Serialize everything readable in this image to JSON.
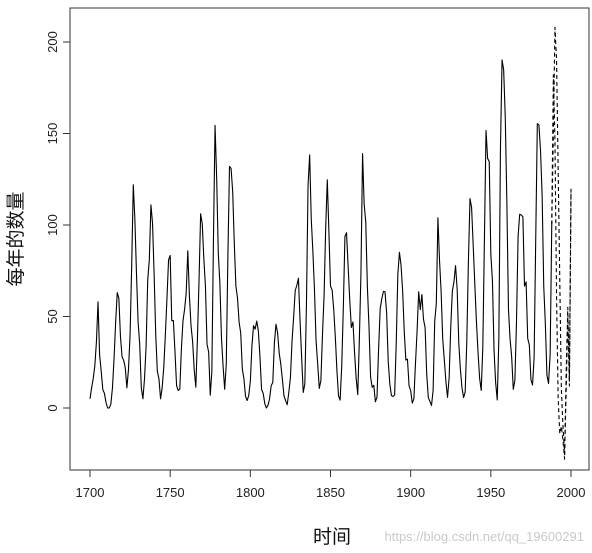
{
  "chart_data": {
    "type": "line",
    "title": "",
    "xlabel": "时间",
    "ylabel": "每年的数量",
    "xlim": [
      1700,
      2000
    ],
    "ylim": [
      -35,
      218
    ],
    "x_ticks": [
      1700,
      1750,
      1800,
      1850,
      1900,
      1950,
      2000
    ],
    "y_ticks": [
      0,
      50,
      100,
      150,
      200
    ],
    "grid": false,
    "legend": "none",
    "watermark": "https://blog.csdn.net/qq_19600291",
    "colors": {
      "line": "#000000",
      "axis": "#333333"
    },
    "series": [
      {
        "style": "solid",
        "x": [
          1700,
          1701,
          1702,
          1703,
          1704,
          1705,
          1706,
          1707,
          1708,
          1709,
          1710,
          1711,
          1712,
          1713,
          1714,
          1715,
          1716,
          1717,
          1718,
          1719,
          1720,
          1721,
          1722,
          1723,
          1724,
          1725,
          1726,
          1727,
          1728,
          1729,
          1730,
          1731,
          1732,
          1733,
          1734,
          1735,
          1736,
          1737,
          1738,
          1739,
          1740,
          1741,
          1742,
          1743,
          1744,
          1745,
          1746,
          1747,
          1748,
          1749,
          1750,
          1751,
          1752,
          1753,
          1754,
          1755,
          1756,
          1757,
          1758,
          1759,
          1760,
          1761,
          1762,
          1763,
          1764,
          1765,
          1766,
          1767,
          1768,
          1769,
          1770,
          1771,
          1772,
          1773,
          1774,
          1775,
          1776,
          1777,
          1778,
          1779,
          1780,
          1781,
          1782,
          1783,
          1784,
          1785,
          1786,
          1787,
          1788,
          1789,
          1790,
          1791,
          1792,
          1793,
          1794,
          1795,
          1796,
          1797,
          1798,
          1799,
          1800,
          1801,
          1802,
          1803,
          1804,
          1805,
          1806,
          1807,
          1808,
          1809,
          1810,
          1811,
          1812,
          1813,
          1814,
          1815,
          1816,
          1817,
          1818,
          1819,
          1820,
          1821,
          1822,
          1823,
          1824,
          1825,
          1826,
          1827,
          1828,
          1829,
          1830,
          1831,
          1832,
          1833,
          1834,
          1835,
          1836,
          1837,
          1838,
          1839,
          1840,
          1841,
          1842,
          1843,
          1844,
          1845,
          1846,
          1847,
          1848,
          1849,
          1850,
          1851,
          1852,
          1853,
          1854,
          1855,
          1856,
          1857,
          1858,
          1859,
          1860,
          1861,
          1862,
          1863,
          1864,
          1865,
          1866,
          1867,
          1868,
          1869,
          1870,
          1871,
          1872,
          1873,
          1874,
          1875,
          1876,
          1877,
          1878,
          1879,
          1880,
          1881,
          1882,
          1883,
          1884,
          1885,
          1886,
          1887,
          1888,
          1889,
          1890,
          1891,
          1892,
          1893,
          1894,
          1895,
          1896,
          1897,
          1898,
          1899,
          1900,
          1901,
          1902,
          1903,
          1904,
          1905,
          1906,
          1907,
          1908,
          1909,
          1910,
          1911,
          1912,
          1913,
          1914,
          1915,
          1916,
          1917,
          1918,
          1919,
          1920,
          1921,
          1922,
          1923,
          1924,
          1925,
          1926,
          1927,
          1928,
          1929,
          1930,
          1931,
          1932,
          1933,
          1934,
          1935,
          1936,
          1937,
          1938,
          1939,
          1940,
          1941,
          1942,
          1943,
          1944,
          1945,
          1946,
          1947,
          1948,
          1949,
          1950,
          1951,
          1952,
          1953,
          1954,
          1955,
          1956,
          1957,
          1958,
          1959,
          1960,
          1961,
          1962,
          1963,
          1964,
          1965,
          1966,
          1967,
          1968,
          1969,
          1970,
          1971,
          1972,
          1973,
          1974,
          1975,
          1976,
          1977,
          1978,
          1979,
          1980,
          1981,
          1982,
          1983,
          1984,
          1985,
          1986,
          1987,
          1988
        ],
        "values": [
          5,
          11,
          16,
          23,
          36,
          58,
          29,
          20,
          10,
          8,
          3,
          0,
          0,
          2,
          11,
          27,
          47,
          63,
          60,
          39,
          28,
          26,
          22,
          11,
          21,
          40,
          78,
          122,
          103,
          73,
          47,
          35,
          11,
          5,
          16,
          34,
          70,
          81,
          111,
          101,
          73,
          40,
          20,
          16,
          5,
          11,
          22,
          40,
          60,
          80.9,
          83.4,
          47.7,
          47.8,
          30.7,
          12.2,
          9.6,
          10.2,
          32.4,
          47.6,
          54,
          62.9,
          85.9,
          61.2,
          45.1,
          36.4,
          20.9,
          11.4,
          37.8,
          69.8,
          106.1,
          100.8,
          81.6,
          66.5,
          34.8,
          30.6,
          7,
          19.8,
          92.5,
          154.4,
          125.9,
          84.8,
          68.1,
          38.5,
          22.8,
          10.2,
          24.1,
          82.9,
          132,
          130.9,
          118.1,
          89.9,
          66.6,
          60,
          46.9,
          41,
          21.3,
          16,
          6.4,
          4.1,
          6.8,
          14.5,
          34,
          45,
          43.1,
          47.5,
          42.2,
          28.1,
          10.1,
          8.1,
          2.5,
          0,
          1.4,
          5,
          12.2,
          13.9,
          35.4,
          45.8,
          41.1,
          30.1,
          23.9,
          15.6,
          6.6,
          4,
          1.8,
          8.5,
          16.6,
          36.3,
          49.6,
          64.2,
          67,
          70.9,
          47.8,
          27.5,
          8.5,
          13.2,
          56.9,
          121.5,
          138.3,
          103.2,
          85.7,
          64.6,
          36.7,
          24.2,
          10.7,
          15,
          40.1,
          61.5,
          98.5,
          124.7,
          96.3,
          66.6,
          64.5,
          54.1,
          39,
          20.6,
          6.7,
          4.3,
          22.7,
          54.8,
          93.8,
          95.8,
          77.2,
          59.1,
          44,
          47,
          30.5,
          16.3,
          7.3,
          37.6,
          74,
          139,
          111.2,
          101.6,
          66.2,
          44.7,
          17,
          11.3,
          12.4,
          3.4,
          6,
          32.3,
          54.3,
          59.7,
          63.7,
          63.5,
          52.2,
          25.4,
          13.1,
          6.8,
          6.3,
          7.1,
          35.6,
          73,
          85.1,
          78,
          64,
          41.8,
          26.2,
          26.7,
          12.1,
          9.5,
          2.7,
          5,
          24.4,
          42,
          63.5,
          53.8,
          62,
          48.5,
          43.9,
          18.6,
          5.7,
          3.6,
          1.4,
          9.6,
          47.4,
          57.1,
          103.9,
          80.6,
          63.6,
          37.6,
          26.1,
          14.2,
          5.8,
          16.7,
          44.3,
          63.9,
          69,
          77.8,
          64.9,
          35.7,
          21.2,
          11.1,
          5.7,
          8.7,
          36.1,
          79.7,
          114.4,
          109.6,
          88.8,
          67.8,
          47.5,
          30.6,
          16.3,
          9.6,
          33.2,
          92.6,
          151.6,
          136.3,
          134.7,
          83.9,
          69.4,
          31.5,
          13.9,
          4.4,
          38,
          141.7,
          190.2,
          184.8,
          159,
          112.3,
          53.9,
          37.6,
          27.9,
          10.2,
          15.1,
          47,
          93.8,
          105.9,
          105.5,
          104.5,
          66.6,
          68.9,
          38,
          34.5,
          15.5,
          12.6,
          27.5,
          92.5,
          155.4,
          154.7,
          140.5,
          115.9,
          66.6,
          45.9,
          17.9,
          13.4,
          29.4,
          100.2
        ]
      },
      {
        "style": "dashed",
        "x": [
          1988,
          1989,
          1990,
          1991,
          1992,
          1993,
          1994,
          1995,
          1996,
          1997,
          1998,
          1999,
          2000
        ],
        "values": [
          100.2,
          182,
          146,
          60,
          5,
          -14,
          -10,
          -18,
          -28,
          20,
          55,
          12,
          120
        ]
      },
      {
        "style": "dashed",
        "x": [
          1988,
          1989,
          1990,
          1991,
          1992,
          1993,
          1994,
          1995,
          1996,
          1997,
          1998,
          1999,
          2000
        ],
        "values": [
          100.2,
          150,
          208,
          190,
          130,
          70,
          10,
          -10,
          -25,
          10,
          50,
          15,
          118
        ]
      }
    ]
  }
}
